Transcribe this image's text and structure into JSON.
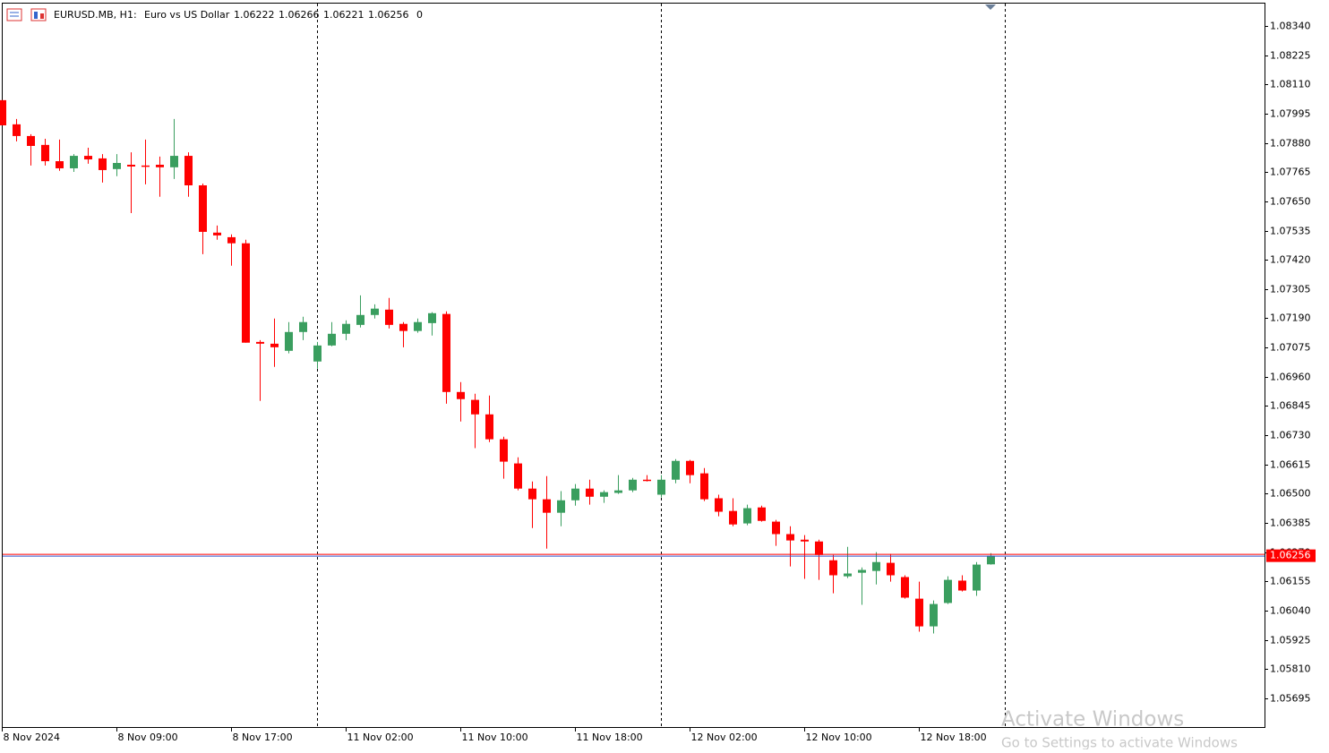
{
  "chart_data": {
    "type": "candlestick",
    "header": {
      "symbol": "EURUSD.MB, H1:",
      "description": "Euro vs US Dollar",
      "open": "1.06222",
      "high": "1.06266",
      "low": "1.06221",
      "close": "1.06256",
      "volume": "0"
    },
    "categories": [
      "8 Nov 2024",
      null,
      null,
      null,
      null,
      null,
      null,
      null,
      "8 Nov 09:00",
      null,
      null,
      null,
      null,
      null,
      null,
      null,
      "8 Nov 17:00",
      null,
      null,
      null,
      null,
      null,
      null,
      null,
      "11 Nov 02:00",
      null,
      null,
      null,
      null,
      null,
      null,
      null,
      "11 Nov 10:00",
      null,
      null,
      null,
      null,
      null,
      null,
      null,
      "11 Nov 18:00",
      null,
      null,
      null,
      null,
      null,
      null,
      null,
      "12 Nov 02:00",
      null,
      null,
      null,
      null,
      null,
      null,
      null,
      "12 Nov 10:00",
      null,
      null,
      null,
      null,
      null,
      null,
      null,
      "12 Nov 18:00",
      null,
      null,
      null,
      null,
      null
    ],
    "open": [
      1.08048,
      1.07953,
      1.07907,
      1.07872,
      1.07808,
      1.0778,
      1.07829,
      1.07819,
      1.07777,
      1.07794,
      1.07791,
      1.07794,
      1.07784,
      1.07829,
      1.07713,
      1.07527,
      1.07509,
      1.07485,
      1.07097,
      1.0709,
      1.07062,
      1.07136,
      1.0702,
      1.07083,
      1.07129,
      1.07164,
      1.07203,
      1.07224,
      1.07168,
      1.0714,
      1.07171,
      1.07207,
      1.069,
      1.06869,
      1.06812,
      1.06714,
      1.06619,
      1.0652,
      1.06478,
      1.06425,
      1.06474,
      1.0652,
      1.06488,
      1.06503,
      1.06513,
      1.06555,
      1.06496,
      1.06555,
      1.06629,
      1.0658,
      1.06482,
      1.06432,
      1.06383,
      1.06446,
      1.0639,
      1.06341,
      1.06319,
      1.06312,
      1.06238,
      1.06175,
      1.06189,
      1.06196,
      1.06228,
      1.06172,
      1.06087,
      1.05978,
      1.0607,
      1.06158,
      1.06119,
      1.06222
    ],
    "high": [
      1.08048,
      1.07974,
      1.07914,
      1.07896,
      1.07893,
      1.07836,
      1.07861,
      1.07836,
      1.07836,
      1.07843,
      1.07893,
      1.07826,
      1.07974,
      1.07843,
      1.0772,
      1.07555,
      1.0752,
      1.07499,
      1.07104,
      1.07189,
      1.07175,
      1.07196,
      1.07097,
      1.07175,
      1.07182,
      1.0728,
      1.07245,
      1.0727,
      1.07175,
      1.07189,
      1.07214,
      1.07217,
      1.06939,
      1.06893,
      1.06886,
      1.06724,
      1.06643,
      1.06548,
      1.06569,
      1.0651,
      1.06538,
      1.06555,
      1.06513,
      1.06573,
      1.06562,
      1.06573,
      1.06573,
      1.06636,
      1.06633,
      1.06601,
      1.06496,
      1.06482,
      1.06457,
      1.06453,
      1.06397,
      1.06372,
      1.06337,
      1.06319,
      1.06259,
      1.06291,
      1.0621,
      1.0627,
      1.06263,
      1.06179,
      1.06154,
      1.0608,
      1.06175,
      1.06179,
      1.06231,
      1.06266
    ],
    "low": [
      1.07949,
      1.07886,
      1.07791,
      1.07791,
      1.0777,
      1.07766,
      1.07798,
      1.07724,
      1.07749,
      1.07604,
      1.07717,
      1.07668,
      1.07738,
      1.07668,
      1.07442,
      1.07499,
      1.07397,
      1.07094,
      1.06865,
      1.06999,
      1.07052,
      1.07104,
      1.06992,
      1.0708,
      1.07104,
      1.07154,
      1.07189,
      1.0715,
      1.07076,
      1.07133,
      1.07122,
      1.06854,
      1.06784,
      1.06679,
      1.06703,
      1.06559,
      1.06513,
      1.06365,
      1.06284,
      1.06372,
      1.06453,
      1.06457,
      1.06464,
      1.06499,
      1.06506,
      1.06548,
      1.06485,
      1.06541,
      1.06541,
      1.06471,
      1.06411,
      1.06372,
      1.06376,
      1.0639,
      1.06295,
      1.06214,
      1.06165,
      1.06161,
      1.06108,
      1.06168,
      1.06063,
      1.06143,
      1.06154,
      1.06087,
      1.05957,
      1.0595,
      1.06066,
      1.06115,
      1.06098,
      1.06221
    ],
    "close": [
      1.07949,
      1.07907,
      1.07868,
      1.07808,
      1.0778,
      1.07829,
      1.07815,
      1.07773,
      1.07801,
      1.07787,
      1.07789,
      1.07784,
      1.07829,
      1.07713,
      1.0753,
      1.07516,
      1.07485,
      1.07094,
      1.0709,
      1.07076,
      1.07136,
      1.07175,
      1.07083,
      1.07129,
      1.07168,
      1.07203,
      1.07228,
      1.07164,
      1.0714,
      1.07175,
      1.0721,
      1.069,
      1.06872,
      1.06812,
      1.06714,
      1.06626,
      1.0652,
      1.06478,
      1.06425,
      1.06474,
      1.0652,
      1.06488,
      1.06506,
      1.06513,
      1.06555,
      1.06552,
      1.06555,
      1.06629,
      1.06573,
      1.06478,
      1.06429,
      1.06379,
      1.06443,
      1.06393,
      1.06341,
      1.06316,
      1.06312,
      1.06259,
      1.06179,
      1.06186,
      1.062,
      1.06231,
      1.06179,
      1.06091,
      1.05978,
      1.06066,
      1.06161,
      1.06119,
      1.06221,
      1.06256
    ],
    "up_color": "#3a9e5f",
    "down_color": "#ff0000",
    "ylim": [
      1.05582,
      1.08428
    ],
    "yticks": [
      {
        "value": 1.0834,
        "label": "1.08340"
      },
      {
        "value": 1.08225,
        "label": "1.08225"
      },
      {
        "value": 1.0811,
        "label": "1.08110"
      },
      {
        "value": 1.07995,
        "label": "1.07995"
      },
      {
        "value": 1.0788,
        "label": "1.07880"
      },
      {
        "value": 1.07765,
        "label": "1.07765"
      },
      {
        "value": 1.0765,
        "label": "1.07650"
      },
      {
        "value": 1.07535,
        "label": "1.07535"
      },
      {
        "value": 1.0742,
        "label": "1.07420"
      },
      {
        "value": 1.07305,
        "label": "1.07305"
      },
      {
        "value": 1.0719,
        "label": "1.07190"
      },
      {
        "value": 1.07075,
        "label": "1.07075"
      },
      {
        "value": 1.0696,
        "label": "1.06960"
      },
      {
        "value": 1.06845,
        "label": "1.06845"
      },
      {
        "value": 1.0673,
        "label": "1.06730"
      },
      {
        "value": 1.06615,
        "label": "1.06615"
      },
      {
        "value": 1.065,
        "label": "1.06500"
      },
      {
        "value": 1.06385,
        "label": "1.06385"
      },
      {
        "value": 1.0627,
        "label": "1.06270"
      },
      {
        "value": 1.06155,
        "label": "1.06155"
      },
      {
        "value": 1.0604,
        "label": "1.06040"
      },
      {
        "value": 1.05925,
        "label": "1.05925"
      },
      {
        "value": 1.0581,
        "label": "1.05810"
      },
      {
        "value": 1.05695,
        "label": "1.05695"
      }
    ],
    "last_price": {
      "value": 1.06256,
      "label": "1.06256"
    },
    "last_price_color": "#ff0000",
    "watermark": {
      "line1": "Activate Windows",
      "line2": "Go to Settings to activate Windows"
    }
  }
}
